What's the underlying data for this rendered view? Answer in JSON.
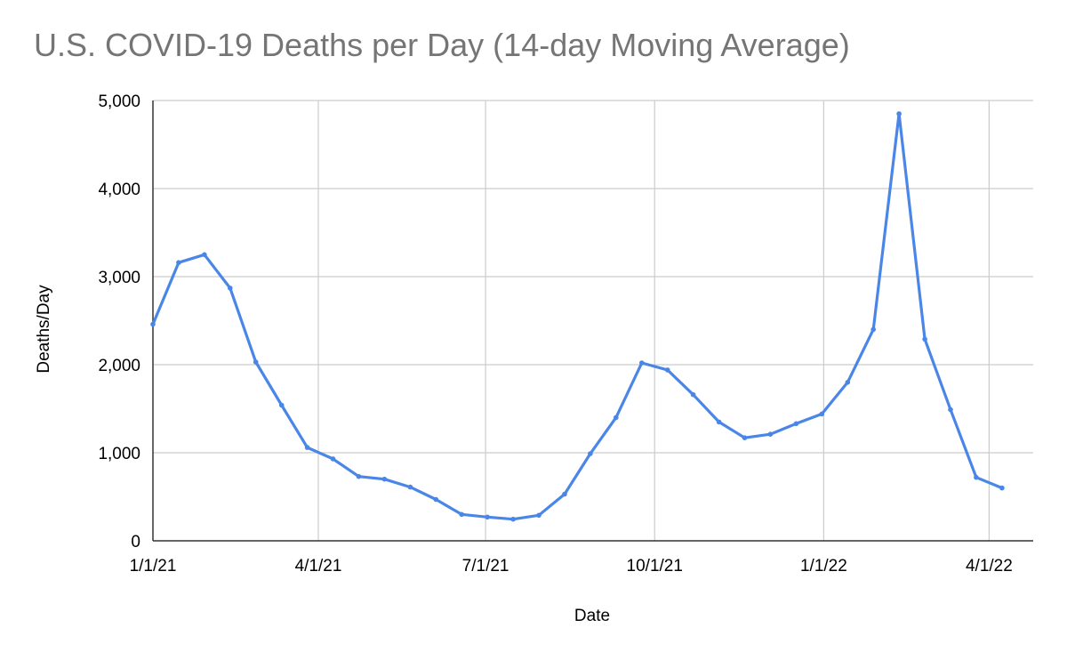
{
  "chart_data": {
    "type": "line",
    "title": "U.S. COVID-19 Deaths per Day (14-day Moving Average)",
    "xlabel": "Date",
    "ylabel": "Deaths/Day",
    "x_tick_labels": [
      "1/1/21",
      "4/1/21",
      "7/1/21",
      "10/1/21",
      "1/1/22",
      "4/1/22"
    ],
    "x_tick_dates": [
      "2021-01-01",
      "2021-04-01",
      "2021-07-01",
      "2021-10-01",
      "2022-01-01",
      "2022-04-01"
    ],
    "y_tick_labels": [
      "0",
      "1,000",
      "2,000",
      "3,000",
      "4,000",
      "5,000"
    ],
    "ylim": [
      0,
      5000
    ],
    "xlim": [
      "2021-01-01",
      "2022-04-25"
    ],
    "grid": true,
    "legend": "none",
    "series": [
      {
        "color": "#4a86e8",
        "points": [
          [
            "2021-01-01",
            2460
          ],
          [
            "2021-01-15",
            3160
          ],
          [
            "2021-01-29",
            3250
          ],
          [
            "2021-02-12",
            2870
          ],
          [
            "2021-02-26",
            2030
          ],
          [
            "2021-03-12",
            1540
          ],
          [
            "2021-03-26",
            1060
          ],
          [
            "2021-04-09",
            930
          ],
          [
            "2021-04-23",
            730
          ],
          [
            "2021-05-07",
            700
          ],
          [
            "2021-05-21",
            610
          ],
          [
            "2021-06-04",
            470
          ],
          [
            "2021-06-18",
            300
          ],
          [
            "2021-07-02",
            270
          ],
          [
            "2021-07-16",
            245
          ],
          [
            "2021-07-30",
            290
          ],
          [
            "2021-08-13",
            530
          ],
          [
            "2021-08-27",
            990
          ],
          [
            "2021-09-10",
            1400
          ],
          [
            "2021-09-24",
            2020
          ],
          [
            "2021-10-08",
            1940
          ],
          [
            "2021-10-22",
            1660
          ],
          [
            "2021-11-05",
            1350
          ],
          [
            "2021-11-19",
            1170
          ],
          [
            "2021-12-03",
            1210
          ],
          [
            "2021-12-17",
            1330
          ],
          [
            "2021-12-31",
            1440
          ],
          [
            "2022-01-14",
            1800
          ],
          [
            "2022-01-28",
            2400
          ],
          [
            "2022-02-11",
            4850
          ],
          [
            "2022-02-25",
            2290
          ],
          [
            "2022-03-11",
            1490
          ],
          [
            "2022-03-25",
            720
          ],
          [
            "2022-04-08",
            600
          ]
        ]
      }
    ]
  }
}
